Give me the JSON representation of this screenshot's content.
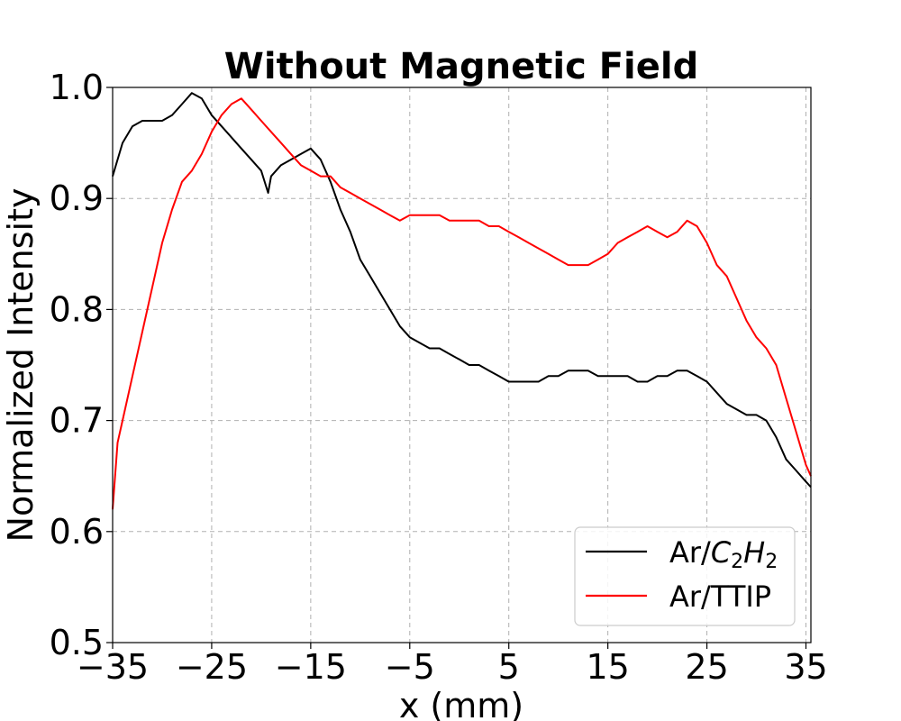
{
  "chart_data": {
    "type": "line",
    "title": "Without Magnetic Field",
    "xlabel": "x (mm)",
    "ylabel": "Normalized Intensity",
    "xlim": [
      -35,
      35.5
    ],
    "ylim": [
      0.5,
      1.0
    ],
    "xticks": [
      -35,
      -25,
      -15,
      -5,
      5,
      15,
      25,
      35
    ],
    "xtick_labels": [
      "−35",
      "−25",
      "−15",
      "−5",
      "5",
      "15",
      "25",
      "35"
    ],
    "yticks": [
      0.5,
      0.6,
      0.7,
      0.8,
      0.9,
      1.0
    ],
    "ytick_labels": [
      "0.5",
      "0.6",
      "0.7",
      "0.8",
      "0.9",
      "1.0"
    ],
    "grid": true,
    "legend_position": "lower-right",
    "series": [
      {
        "name": "Ar/C2H2",
        "legend_parts": {
          "prefix": "Ar/",
          "c": "C",
          "sub1": "2",
          "h": "H",
          "sub2": "2"
        },
        "color": "#000000",
        "x": [
          -35,
          -34,
          -33,
          -32,
          -31,
          -30,
          -29,
          -28,
          -27,
          -26,
          -25,
          -24,
          -23,
          -22,
          -21,
          -20,
          -19.3,
          -19,
          -18,
          -17,
          -16,
          -15,
          -14,
          -13,
          -12,
          -11,
          -10,
          -9,
          -8,
          -7,
          -6,
          -5,
          -4,
          -3,
          -2,
          -1,
          0,
          1,
          2,
          3,
          4,
          5,
          6,
          7,
          8,
          9,
          10,
          11,
          12,
          13,
          14,
          15,
          16,
          17,
          18,
          19,
          20,
          21,
          22,
          23,
          24,
          25,
          26,
          27,
          28,
          29,
          30,
          31,
          32,
          33,
          34,
          35,
          35.5
        ],
        "values": [
          0.92,
          0.95,
          0.965,
          0.97,
          0.97,
          0.97,
          0.975,
          0.985,
          0.995,
          0.99,
          0.975,
          0.965,
          0.955,
          0.945,
          0.935,
          0.925,
          0.905,
          0.92,
          0.93,
          0.935,
          0.94,
          0.945,
          0.935,
          0.915,
          0.89,
          0.87,
          0.845,
          0.83,
          0.815,
          0.8,
          0.785,
          0.775,
          0.77,
          0.765,
          0.765,
          0.76,
          0.755,
          0.75,
          0.75,
          0.745,
          0.74,
          0.735,
          0.735,
          0.735,
          0.735,
          0.74,
          0.74,
          0.745,
          0.745,
          0.745,
          0.74,
          0.74,
          0.74,
          0.74,
          0.735,
          0.735,
          0.74,
          0.74,
          0.745,
          0.745,
          0.74,
          0.735,
          0.725,
          0.715,
          0.71,
          0.705,
          0.705,
          0.7,
          0.685,
          0.665,
          0.655,
          0.645,
          0.64
        ]
      },
      {
        "name": "Ar/TTIP",
        "legend_parts": {
          "prefix": "Ar/TTIP"
        },
        "color": "#ff0000",
        "x": [
          -35,
          -34.5,
          -34,
          -33,
          -32,
          -31,
          -30,
          -29,
          -28,
          -27,
          -26,
          -25,
          -24,
          -23,
          -22,
          -21,
          -20,
          -19,
          -18,
          -17,
          -16,
          -15,
          -14,
          -13,
          -12,
          -11,
          -10,
          -9,
          -8,
          -7,
          -6,
          -5,
          -4,
          -3,
          -2,
          -1,
          0,
          1,
          2,
          3,
          4,
          5,
          6,
          7,
          8,
          9,
          10,
          11,
          12,
          13,
          14,
          15,
          16,
          17,
          18,
          19,
          20,
          21,
          22,
          23,
          24,
          25,
          26,
          27,
          28,
          29,
          30,
          31,
          32,
          33,
          34,
          35,
          35.5
        ],
        "values": [
          0.62,
          0.68,
          0.7,
          0.74,
          0.78,
          0.82,
          0.86,
          0.89,
          0.915,
          0.925,
          0.94,
          0.96,
          0.975,
          0.985,
          0.99,
          0.98,
          0.97,
          0.96,
          0.95,
          0.94,
          0.93,
          0.925,
          0.92,
          0.92,
          0.91,
          0.905,
          0.9,
          0.895,
          0.89,
          0.885,
          0.88,
          0.885,
          0.885,
          0.885,
          0.885,
          0.88,
          0.88,
          0.88,
          0.88,
          0.875,
          0.875,
          0.87,
          0.865,
          0.86,
          0.855,
          0.85,
          0.845,
          0.84,
          0.84,
          0.84,
          0.845,
          0.85,
          0.86,
          0.865,
          0.87,
          0.875,
          0.87,
          0.865,
          0.87,
          0.88,
          0.875,
          0.86,
          0.84,
          0.83,
          0.81,
          0.79,
          0.775,
          0.765,
          0.75,
          0.72,
          0.69,
          0.66,
          0.65
        ]
      }
    ]
  }
}
